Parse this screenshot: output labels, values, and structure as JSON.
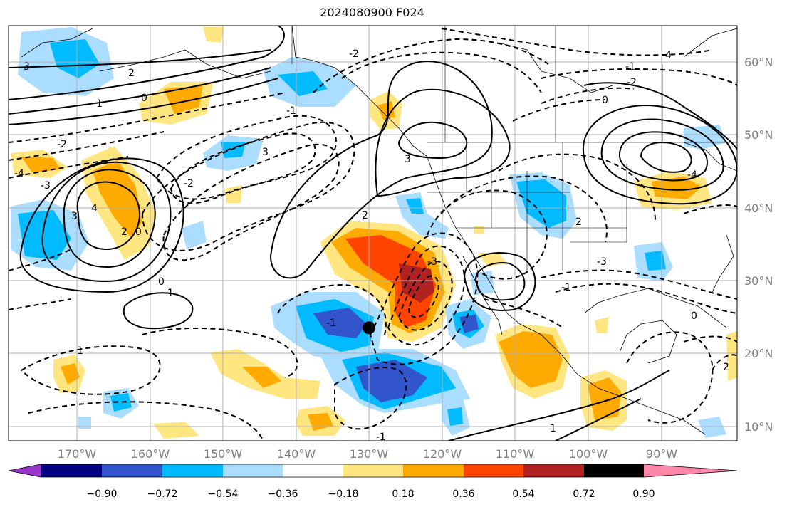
{
  "title": "2024080900 F024",
  "map": {
    "lon_labels": [
      "170°W",
      "160°W",
      "150°W",
      "140°W",
      "130°W",
      "120°W",
      "110°W",
      "100°W",
      "90°W"
    ],
    "lat_labels": [
      "60°N",
      "50°N",
      "40°N",
      "30°N",
      "20°N",
      "10°N"
    ],
    "marker": {
      "lon": -130,
      "lat": 23.5
    }
  },
  "colorbar": {
    "ticks": [
      "−0.90",
      "−0.72",
      "−0.54",
      "−0.36",
      "−0.18",
      "0.18",
      "0.36",
      "0.54",
      "0.72",
      "0.90"
    ],
    "colors": {
      "under": "#9933cc",
      "bins": [
        "#000080",
        "#3355cc",
        "#00bbff",
        "#aaddff",
        "#ffffff",
        "#ffe680",
        "#ffaa00",
        "#ff4400",
        "#b22222"
      ],
      "over": "#ff88aa"
    }
  },
  "contour_labels": [
    "3",
    "2",
    "1",
    "0",
    "-2",
    "-3",
    "-4",
    "4",
    "0",
    "3",
    "2",
    "3",
    "0",
    "-1",
    "1",
    "2",
    "3",
    "4",
    "-2",
    "0",
    "-1",
    "-2",
    "-3",
    "-4",
    "-1",
    "0",
    "-3",
    "2",
    "-1",
    "2",
    "1",
    "-1",
    "-2",
    "-1"
  ]
}
